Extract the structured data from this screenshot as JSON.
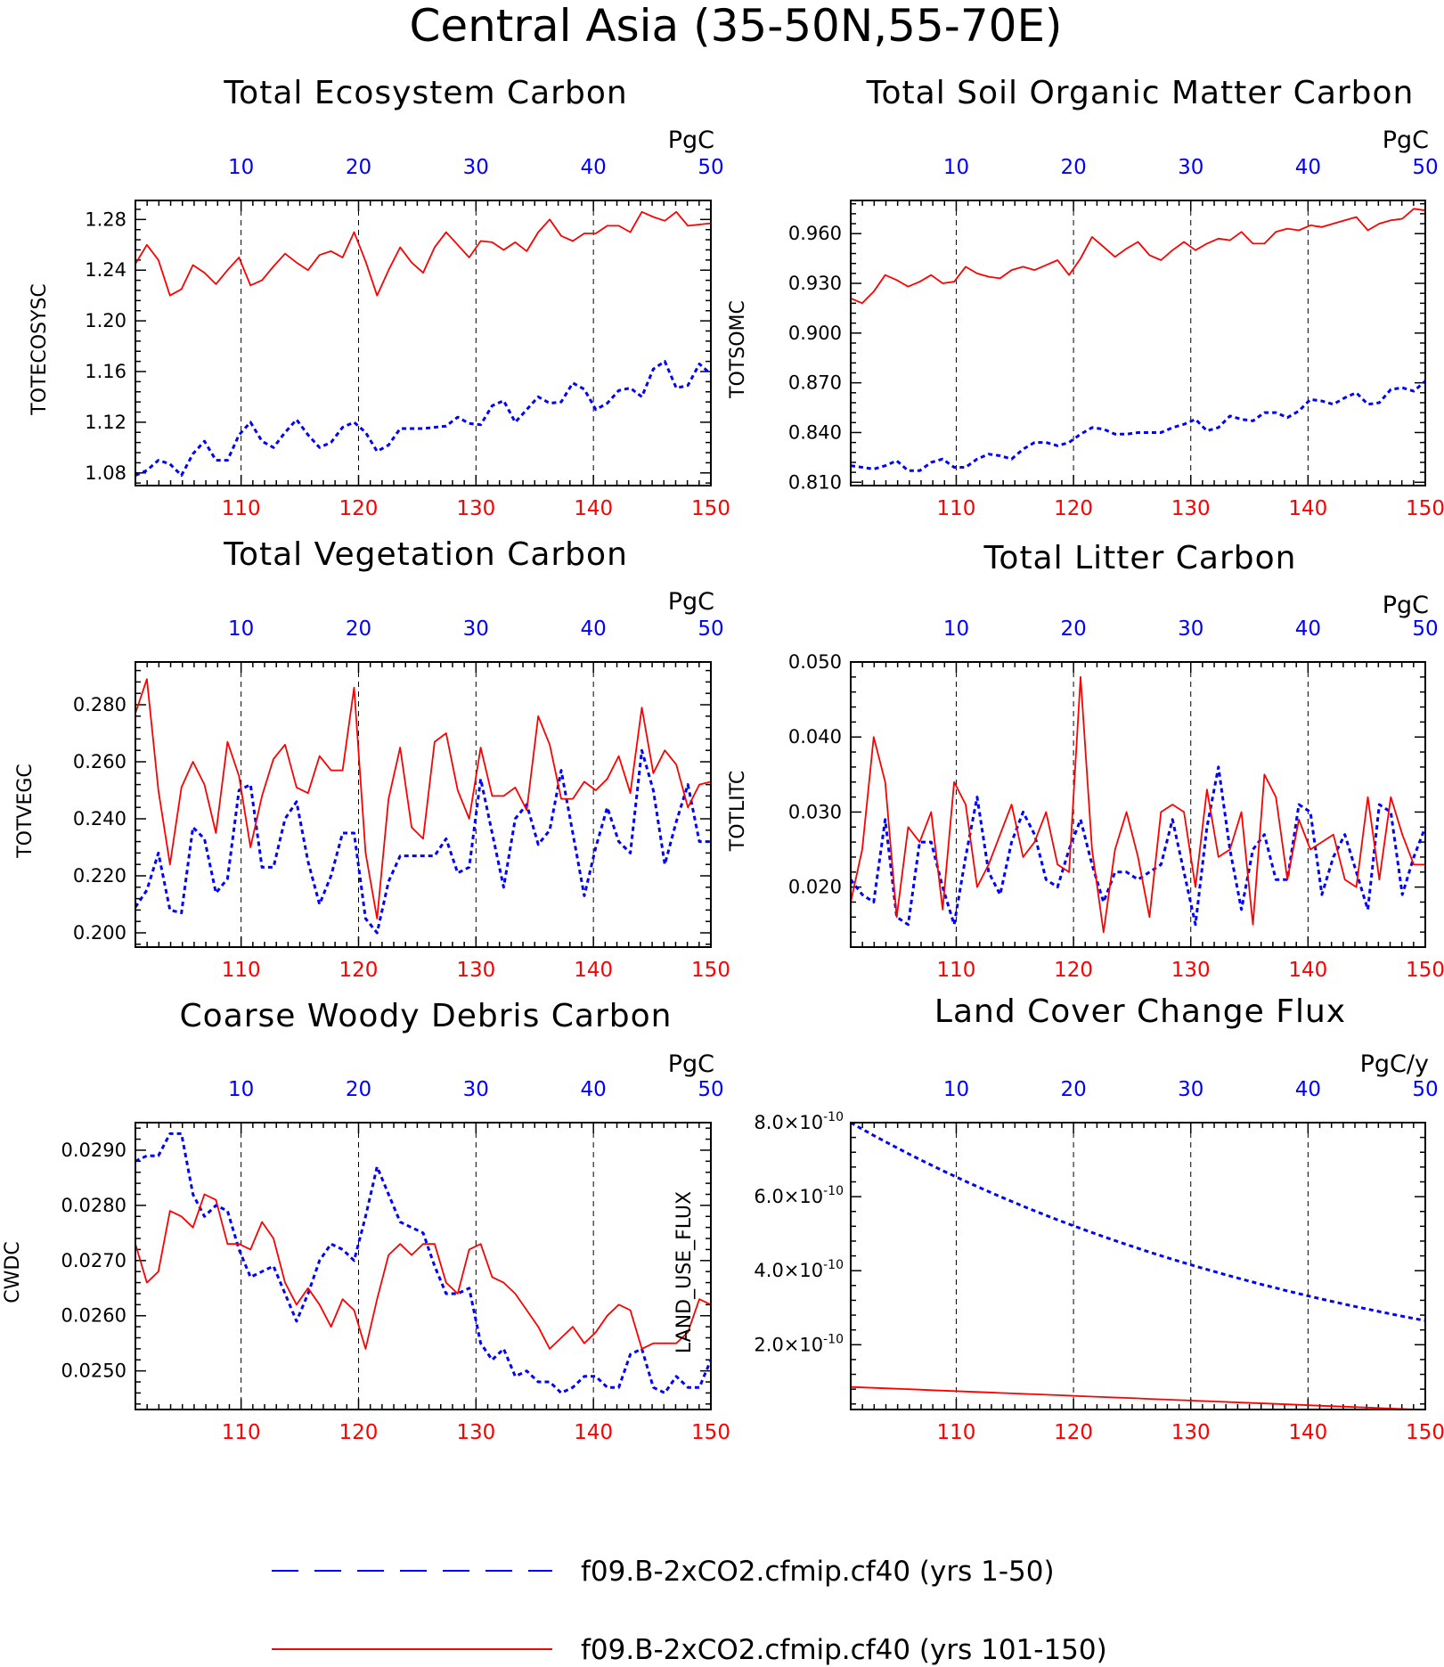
{
  "figure_title": "Central Asia (35-50N,55-70E)",
  "legend": [
    {
      "label": "f09.B-2xCO2.cfmip.cf40 (yrs 1-50)",
      "color": "#0000ff",
      "style": "dashed"
    },
    {
      "label": "f09.B-2xCO2.cfmip.cf40 (yrs 101-150)",
      "color": "#ff0000",
      "style": "solid"
    }
  ],
  "colors": {
    "series_a": "#0000ff",
    "series_b": "#ff0000",
    "grid": "#000000"
  },
  "chart_data": [
    {
      "type": "line",
      "title": "Total Ecosystem Carbon",
      "units": "PgC",
      "ylabel": "TOTECOSYSC",
      "ylim": [
        1.07,
        1.295
      ],
      "yticks": [
        1.08,
        1.12,
        1.16,
        1.2,
        1.24,
        1.28
      ],
      "ytick_labels": [
        "1.08",
        "1.12",
        "1.16",
        "1.20",
        "1.24",
        "1.28"
      ],
      "top_xaxis": {
        "range": [
          1,
          50
        ],
        "ticks": [
          "10",
          "20",
          "30",
          "40",
          "50"
        ]
      },
      "bottom_xaxis": {
        "range": [
          101,
          150
        ],
        "ticks": [
          "110",
          "120",
          "130",
          "140",
          "150"
        ]
      },
      "grid": "vertical dashed at tick positions",
      "series": [
        {
          "years": "1-50",
          "values": [
            1.078,
            1.082,
            1.09,
            1.087,
            1.078,
            1.095,
            1.105,
            1.09,
            1.09,
            1.11,
            1.12,
            1.105,
            1.1,
            1.112,
            1.122,
            1.11,
            1.1,
            1.104,
            1.116,
            1.12,
            1.112,
            1.097,
            1.102,
            1.115,
            1.115,
            1.115,
            1.116,
            1.117,
            1.124,
            1.119,
            1.118,
            1.133,
            1.137,
            1.12,
            1.13,
            1.14,
            1.135,
            1.136,
            1.151,
            1.146,
            1.13,
            1.135,
            1.145,
            1.147,
            1.14,
            1.162,
            1.168,
            1.147,
            1.149,
            1.166,
            1.158
          ]
        },
        {
          "years": "101-150",
          "values": [
            1.245,
            1.26,
            1.248,
            1.22,
            1.225,
            1.244,
            1.238,
            1.229,
            1.24,
            1.25,
            1.228,
            1.232,
            1.243,
            1.253,
            1.246,
            1.24,
            1.252,
            1.255,
            1.25,
            1.27,
            1.247,
            1.22,
            1.24,
            1.258,
            1.246,
            1.238,
            1.258,
            1.27,
            1.26,
            1.25,
            1.263,
            1.262,
            1.256,
            1.262,
            1.255,
            1.27,
            1.28,
            1.267,
            1.263,
            1.269,
            1.269,
            1.275,
            1.275,
            1.27,
            1.286,
            1.282,
            1.279,
            1.286,
            1.275,
            1.276,
            1.277
          ]
        }
      ]
    },
    {
      "type": "line",
      "title": "Total Soil Organic Matter Carbon",
      "units": "PgC",
      "ylabel": "TOTSOMC",
      "ylim": [
        0.808,
        0.98
      ],
      "yticks": [
        0.81,
        0.84,
        0.87,
        0.9,
        0.93,
        0.96
      ],
      "ytick_labels": [
        "0.810",
        "0.840",
        "0.870",
        "0.900",
        "0.930",
        "0.960"
      ],
      "top_xaxis": {
        "range": [
          1,
          50
        ],
        "ticks": [
          "10",
          "20",
          "30",
          "40",
          "50"
        ]
      },
      "bottom_xaxis": {
        "range": [
          101,
          150
        ],
        "ticks": [
          "110",
          "120",
          "130",
          "140",
          "150"
        ]
      },
      "grid": "vertical dashed at tick positions",
      "series": [
        {
          "years": "1-50",
          "values": [
            0.82,
            0.819,
            0.818,
            0.82,
            0.823,
            0.817,
            0.817,
            0.822,
            0.824,
            0.819,
            0.819,
            0.824,
            0.827,
            0.826,
            0.824,
            0.83,
            0.834,
            0.834,
            0.832,
            0.834,
            0.839,
            0.843,
            0.842,
            0.839,
            0.839,
            0.84,
            0.84,
            0.84,
            0.843,
            0.845,
            0.848,
            0.841,
            0.843,
            0.85,
            0.848,
            0.847,
            0.852,
            0.852,
            0.849,
            0.853,
            0.86,
            0.859,
            0.857,
            0.861,
            0.864,
            0.857,
            0.858,
            0.866,
            0.867,
            0.865,
            0.871
          ]
        },
        {
          "years": "101-150",
          "values": [
            0.921,
            0.918,
            0.925,
            0.935,
            0.932,
            0.928,
            0.931,
            0.935,
            0.93,
            0.931,
            0.94,
            0.936,
            0.934,
            0.933,
            0.938,
            0.94,
            0.938,
            0.941,
            0.944,
            0.935,
            0.945,
            0.958,
            0.952,
            0.946,
            0.951,
            0.955,
            0.947,
            0.944,
            0.95,
            0.955,
            0.95,
            0.954,
            0.957,
            0.956,
            0.961,
            0.954,
            0.954,
            0.961,
            0.963,
            0.962,
            0.965,
            0.964,
            0.966,
            0.968,
            0.97,
            0.962,
            0.966,
            0.968,
            0.969,
            0.975,
            0.974
          ]
        }
      ]
    },
    {
      "type": "line",
      "title": "Total Vegetation Carbon",
      "units": "PgC",
      "ylabel": "TOTVEGC",
      "ylim": [
        0.195,
        0.295
      ],
      "yticks": [
        0.2,
        0.22,
        0.24,
        0.26,
        0.28
      ],
      "ytick_labels": [
        "0.200",
        "0.220",
        "0.240",
        "0.260",
        "0.280"
      ],
      "top_xaxis": {
        "range": [
          1,
          50
        ],
        "ticks": [
          "10",
          "20",
          "30",
          "40",
          "50"
        ]
      },
      "bottom_xaxis": {
        "range": [
          101,
          150
        ],
        "ticks": [
          "110",
          "120",
          "130",
          "140",
          "150"
        ]
      },
      "grid": "vertical dashed at tick positions",
      "series": [
        {
          "years": "1-50",
          "values": [
            0.209,
            0.215,
            0.228,
            0.208,
            0.207,
            0.237,
            0.233,
            0.214,
            0.219,
            0.25,
            0.252,
            0.223,
            0.223,
            0.24,
            0.246,
            0.225,
            0.21,
            0.22,
            0.235,
            0.235,
            0.205,
            0.2,
            0.218,
            0.227,
            0.227,
            0.227,
            0.227,
            0.233,
            0.221,
            0.223,
            0.254,
            0.235,
            0.216,
            0.24,
            0.245,
            0.231,
            0.236,
            0.257,
            0.235,
            0.213,
            0.23,
            0.244,
            0.232,
            0.228,
            0.264,
            0.25,
            0.224,
            0.239,
            0.252,
            0.232,
            0.232
          ]
        },
        {
          "years": "101-150",
          "values": [
            0.277,
            0.289,
            0.25,
            0.224,
            0.251,
            0.26,
            0.252,
            0.235,
            0.267,
            0.255,
            0.23,
            0.248,
            0.261,
            0.266,
            0.251,
            0.249,
            0.262,
            0.257,
            0.257,
            0.286,
            0.228,
            0.205,
            0.247,
            0.265,
            0.237,
            0.233,
            0.267,
            0.27,
            0.25,
            0.24,
            0.265,
            0.248,
            0.248,
            0.251,
            0.243,
            0.276,
            0.266,
            0.247,
            0.247,
            0.253,
            0.25,
            0.254,
            0.262,
            0.249,
            0.279,
            0.256,
            0.264,
            0.259,
            0.244,
            0.252,
            0.253
          ]
        }
      ]
    },
    {
      "type": "line",
      "title": "Total Litter Carbon",
      "units": "PgC",
      "ylabel": "TOTLITC",
      "ylim": [
        0.012,
        0.05
      ],
      "yticks": [
        0.02,
        0.03,
        0.04,
        0.05
      ],
      "ytick_labels": [
        "0.020",
        "0.030",
        "0.040",
        "0.050"
      ],
      "top_xaxis": {
        "range": [
          1,
          50
        ],
        "ticks": [
          "10",
          "20",
          "30",
          "40",
          "50"
        ]
      },
      "bottom_xaxis": {
        "range": [
          101,
          150
        ],
        "ticks": [
          "110",
          "120",
          "130",
          "140",
          "150"
        ]
      },
      "grid": "vertical dashed at tick positions",
      "series": [
        {
          "years": "1-50",
          "values": [
            0.021,
            0.019,
            0.018,
            0.029,
            0.016,
            0.015,
            0.026,
            0.026,
            0.02,
            0.015,
            0.024,
            0.032,
            0.022,
            0.019,
            0.026,
            0.03,
            0.027,
            0.021,
            0.02,
            0.025,
            0.029,
            0.023,
            0.018,
            0.022,
            0.022,
            0.021,
            0.022,
            0.023,
            0.029,
            0.022,
            0.015,
            0.028,
            0.036,
            0.025,
            0.017,
            0.025,
            0.027,
            0.021,
            0.021,
            0.031,
            0.03,
            0.019,
            0.024,
            0.027,
            0.022,
            0.017,
            0.031,
            0.03,
            0.019,
            0.024,
            0.028
          ]
        },
        {
          "years": "101-150",
          "values": [
            0.018,
            0.025,
            0.04,
            0.034,
            0.016,
            0.028,
            0.026,
            0.03,
            0.017,
            0.034,
            0.031,
            0.02,
            0.023,
            0.027,
            0.031,
            0.024,
            0.026,
            0.03,
            0.023,
            0.022,
            0.048,
            0.025,
            0.014,
            0.025,
            0.03,
            0.024,
            0.016,
            0.03,
            0.031,
            0.03,
            0.02,
            0.033,
            0.024,
            0.025,
            0.03,
            0.015,
            0.035,
            0.032,
            0.021,
            0.029,
            0.025,
            0.026,
            0.027,
            0.021,
            0.02,
            0.032,
            0.021,
            0.032,
            0.027,
            0.023,
            0.023
          ]
        }
      ]
    },
    {
      "type": "line",
      "title": "Coarse Woody Debris Carbon",
      "units": "PgC",
      "ylabel": "CWDC",
      "ylim": [
        0.0243,
        0.0295
      ],
      "yticks": [
        0.025,
        0.026,
        0.027,
        0.028,
        0.029
      ],
      "ytick_labels": [
        "0.0250",
        "0.0260",
        "0.0270",
        "0.0280",
        "0.0290"
      ],
      "top_xaxis": {
        "range": [
          1,
          50
        ],
        "ticks": [
          "10",
          "20",
          "30",
          "40",
          "50"
        ]
      },
      "bottom_xaxis": {
        "range": [
          101,
          150
        ],
        "ticks": [
          "110",
          "120",
          "130",
          "140",
          "150"
        ]
      },
      "grid": "vertical dashed at tick positions",
      "series": [
        {
          "years": "1-50",
          "values": [
            0.0288,
            0.0289,
            0.0289,
            0.0293,
            0.0293,
            0.0282,
            0.0278,
            0.028,
            0.0279,
            0.0272,
            0.0267,
            0.0268,
            0.0269,
            0.0264,
            0.0259,
            0.0264,
            0.027,
            0.0273,
            0.0272,
            0.027,
            0.0278,
            0.0287,
            0.0282,
            0.0277,
            0.0276,
            0.0275,
            0.0269,
            0.0264,
            0.0264,
            0.0265,
            0.0255,
            0.0252,
            0.0254,
            0.0249,
            0.025,
            0.0248,
            0.0248,
            0.0246,
            0.0247,
            0.0249,
            0.0249,
            0.0247,
            0.0247,
            0.0253,
            0.0254,
            0.0247,
            0.0246,
            0.0249,
            0.0247,
            0.0247,
            0.0252
          ]
        },
        {
          "years": "101-150",
          "values": [
            0.0273,
            0.0266,
            0.0268,
            0.0279,
            0.0278,
            0.0276,
            0.0282,
            0.0281,
            0.0273,
            0.0273,
            0.0272,
            0.0277,
            0.0274,
            0.0266,
            0.0262,
            0.0265,
            0.0262,
            0.0258,
            0.0263,
            0.0261,
            0.0254,
            0.0263,
            0.0271,
            0.0273,
            0.0271,
            0.0273,
            0.0273,
            0.0266,
            0.0264,
            0.0272,
            0.0273,
            0.0267,
            0.0266,
            0.0264,
            0.0261,
            0.0258,
            0.0254,
            0.0256,
            0.0258,
            0.0255,
            0.0257,
            0.026,
            0.0262,
            0.0261,
            0.0254,
            0.0255,
            0.0255,
            0.0255,
            0.0257,
            0.0263,
            0.0262
          ]
        }
      ]
    },
    {
      "type": "line",
      "title": "Land Cover Change Flux",
      "units": "PgC/y",
      "ylabel": "LAND_USE_FLUX",
      "ylim": [
        0.25,
        8.0
      ],
      "yscale_note": "values in units of 10^-10",
      "yticks": [
        2,
        4,
        6,
        8
      ],
      "ytick_labels": [
        {
          "mantissa": "2.0",
          "exponent": "-10"
        },
        {
          "mantissa": "4.0",
          "exponent": "-10"
        },
        {
          "mantissa": "6.0",
          "exponent": "-10"
        },
        {
          "mantissa": "8.0",
          "exponent": "-10"
        }
      ],
      "top_xaxis": {
        "range": [
          1,
          50
        ],
        "ticks": [
          "10",
          "20",
          "30",
          "40",
          "50"
        ]
      },
      "bottom_xaxis": {
        "range": [
          101,
          150
        ],
        "ticks": [
          "110",
          "120",
          "130",
          "140",
          "150"
        ]
      },
      "grid": "vertical dashed at tick positions",
      "series": [
        {
          "years": "1-50",
          "start": 8.0,
          "end": 2.65,
          "shape": "exponential decay"
        },
        {
          "years": "101-150",
          "start": 0.86,
          "end": 0.24,
          "shape": "slow linear decline"
        }
      ]
    }
  ]
}
